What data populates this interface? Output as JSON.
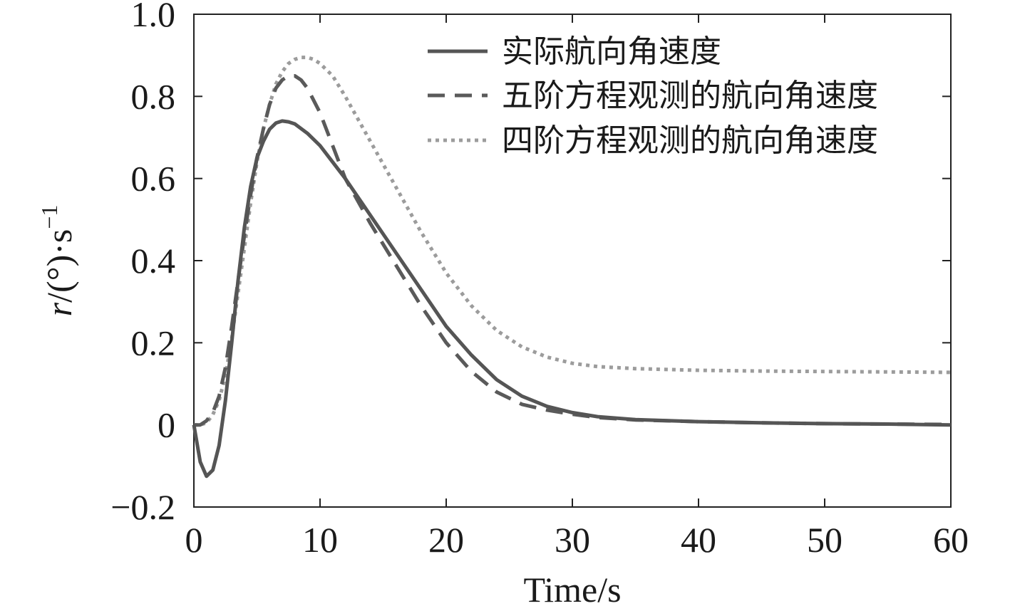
{
  "chart_data": {
    "type": "line",
    "title": "",
    "xlabel": "Time/s",
    "ylabel": {
      "italic": "r",
      "body": "/(°)·s",
      "sup": "−1"
    },
    "xlim": [
      0,
      60
    ],
    "ylim": [
      -0.2,
      1.0
    ],
    "grid": false,
    "legend_position": "top-right",
    "x_ticks": [
      0,
      10,
      20,
      30,
      40,
      50,
      60
    ],
    "x_tick_labels": [
      "0",
      "10",
      "20",
      "30",
      "40",
      "50",
      "60"
    ],
    "y_ticks": [
      -0.2,
      0,
      0.2,
      0.4,
      0.6,
      0.8,
      1.0
    ],
    "y_tick_labels": [
      "−0.2",
      "0",
      "0.2",
      "0.4",
      "0.6",
      "0.8",
      "1.0"
    ],
    "series": [
      {
        "name": "实际航向角速度",
        "style": "solid",
        "color": "#555555",
        "x": [
          0,
          0.5,
          1.0,
          1.5,
          2.0,
          2.5,
          3.0,
          3.5,
          4.0,
          4.5,
          5.0,
          5.5,
          6.0,
          6.5,
          7.0,
          7.5,
          8.0,
          9.0,
          10.0,
          12.0,
          14.0,
          16.0,
          18.0,
          20.0,
          22.0,
          24.0,
          26.0,
          28.0,
          30.0,
          32.0,
          35.0,
          40.0,
          45.0,
          50.0,
          55.0,
          60.0
        ],
        "y": [
          0.0,
          -0.09,
          -0.125,
          -0.11,
          -0.05,
          0.06,
          0.2,
          0.35,
          0.48,
          0.58,
          0.65,
          0.69,
          0.72,
          0.735,
          0.74,
          0.738,
          0.733,
          0.71,
          0.68,
          0.6,
          0.51,
          0.42,
          0.33,
          0.24,
          0.17,
          0.11,
          0.07,
          0.045,
          0.03,
          0.02,
          0.013,
          0.008,
          0.005,
          0.003,
          0.002,
          0.0
        ]
      },
      {
        "name": "五阶方程观测的航向角速度",
        "style": "dashed",
        "color": "#5a5a5a",
        "x": [
          0,
          0.5,
          1.0,
          1.5,
          2.0,
          2.5,
          3.0,
          3.5,
          4.0,
          4.5,
          5.0,
          5.5,
          6.0,
          6.5,
          7.0,
          7.5,
          8.0,
          8.5,
          9.0,
          10.0,
          11.0,
          12.0,
          14.0,
          16.0,
          18.0,
          20.0,
          22.0,
          24.0,
          26.0,
          28.0,
          30.0,
          32.0,
          35.0,
          40.0,
          45.0,
          50.0,
          55.0,
          60.0
        ],
        "y": [
          0.0,
          0.0,
          0.01,
          0.03,
          0.07,
          0.14,
          0.24,
          0.35,
          0.46,
          0.56,
          0.65,
          0.72,
          0.78,
          0.82,
          0.84,
          0.85,
          0.85,
          0.84,
          0.82,
          0.76,
          0.68,
          0.6,
          0.49,
          0.39,
          0.29,
          0.2,
          0.13,
          0.08,
          0.05,
          0.036,
          0.026,
          0.018,
          0.012,
          0.008,
          0.005,
          0.003,
          0.002,
          0.001
        ]
      },
      {
        "name": "四阶方程观测的航向角速度",
        "style": "dotted",
        "color": "#9c9c9c",
        "x": [
          0,
          0.5,
          1.0,
          1.5,
          2.0,
          2.5,
          3.0,
          3.5,
          4.0,
          4.5,
          5.0,
          5.5,
          6.0,
          6.5,
          7.0,
          7.5,
          8.0,
          8.5,
          9.0,
          9.5,
          10.0,
          11.0,
          12.0,
          14.0,
          16.0,
          18.0,
          20.0,
          22.0,
          24.0,
          26.0,
          28.0,
          30.0,
          32.0,
          35.0,
          40.0,
          45.0,
          50.0,
          55.0,
          60.0
        ],
        "y": [
          0.0,
          0.0,
          0.005,
          0.025,
          0.06,
          0.12,
          0.21,
          0.32,
          0.43,
          0.54,
          0.64,
          0.72,
          0.78,
          0.83,
          0.86,
          0.88,
          0.89,
          0.895,
          0.895,
          0.89,
          0.88,
          0.85,
          0.8,
          0.69,
          0.58,
          0.47,
          0.37,
          0.29,
          0.23,
          0.19,
          0.165,
          0.15,
          0.142,
          0.137,
          0.133,
          0.131,
          0.13,
          0.129,
          0.128
        ]
      }
    ]
  }
}
